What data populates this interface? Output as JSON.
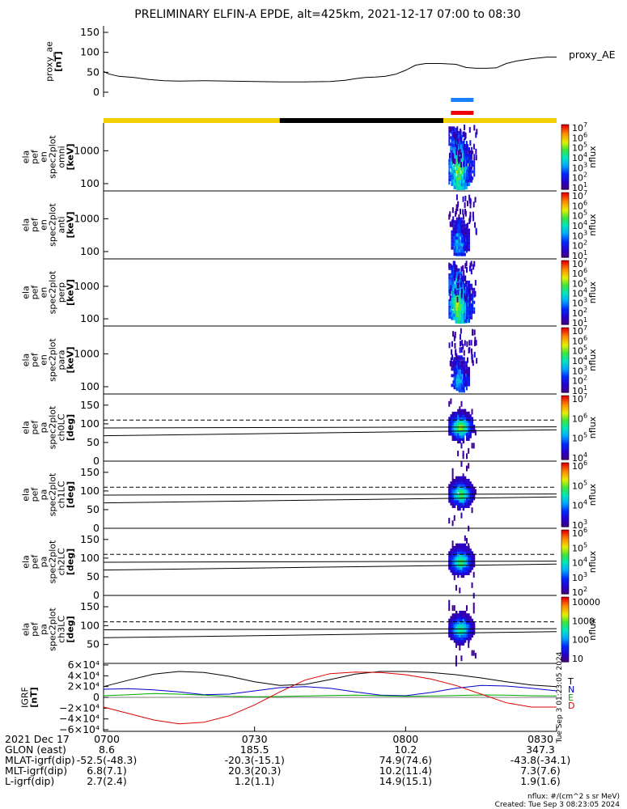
{
  "chart_data": [
    {
      "type": "line",
      "title": "PRELIMINARY ELFIN-A EPDE, alt=425km, 2021-12-17 07:00 to 08:30",
      "ylabel": [
        "proxy_ae",
        "[nT]"
      ],
      "ylim": [
        0,
        160
      ],
      "yticks": [
        0,
        50,
        100,
        150
      ],
      "legend": "proxy_AE",
      "series": [
        {
          "name": "proxy_AE",
          "color": "#000000",
          "x": [
            0,
            1,
            3,
            6,
            9,
            12,
            15,
            20,
            25,
            30,
            35,
            40,
            45,
            48,
            50,
            52,
            54,
            56,
            58,
            60,
            62,
            64,
            65,
            67,
            70,
            72,
            74,
            76,
            78,
            80,
            82,
            85,
            88,
            90
          ],
          "y": [
            52,
            46,
            40,
            37,
            32,
            29,
            28,
            29,
            28,
            27,
            26,
            26,
            27,
            30,
            34,
            37,
            38,
            40,
            45,
            55,
            68,
            72,
            72,
            72,
            70,
            62,
            60,
            60,
            61,
            72,
            78,
            84,
            88,
            88
          ]
        }
      ]
    },
    {
      "type": "heatmap",
      "ylabel": [
        "ela",
        "pef",
        "en",
        "spec2plot",
        "omni",
        "[keV]"
      ],
      "ylog": true,
      "ylim": [
        60,
        7000
      ],
      "yticks": [
        100,
        1000
      ],
      "ytick_labels": [
        "100",
        "1000"
      ],
      "colorbar": {
        "label": "nflux",
        "log": true,
        "min_exp": 1,
        "max_exp": 7
      },
      "intensity": [
        {
          "t": 69.0,
          "lo": 110,
          "hi": 5500,
          "c": 0.32
        },
        {
          "t": 69.5,
          "lo": 95,
          "hi": 5000,
          "c": 0.45
        },
        {
          "t": 70.0,
          "lo": 80,
          "hi": 4000,
          "c": 0.58
        },
        {
          "t": 70.5,
          "lo": 75,
          "hi": 3000,
          "c": 0.7
        },
        {
          "t": 71.0,
          "lo": 75,
          "hi": 2400,
          "c": 0.62
        },
        {
          "t": 71.5,
          "lo": 80,
          "hi": 2000,
          "c": 0.52
        },
        {
          "t": 72.0,
          "lo": 90,
          "hi": 1600,
          "c": 0.4
        },
        {
          "t": 72.5,
          "lo": 110,
          "hi": 1300,
          "c": 0.3
        },
        {
          "t": 73.0,
          "lo": 150,
          "hi": 1000,
          "c": 0.22
        }
      ]
    },
    {
      "type": "heatmap",
      "ylabel": [
        "ela",
        "pef",
        "en",
        "spec2plot",
        "anti",
        "[keV]"
      ],
      "ylog": true,
      "ylim": [
        60,
        7000
      ],
      "yticks": [
        100,
        1000
      ],
      "ytick_labels": [
        "100",
        "1000"
      ],
      "colorbar": {
        "label": "nflux",
        "log": true,
        "min_exp": 1,
        "max_exp": 7
      },
      "intensity": [
        {
          "t": 69.5,
          "lo": 120,
          "hi": 700,
          "c": 0.18
        },
        {
          "t": 70.0,
          "lo": 90,
          "hi": 900,
          "c": 0.32
        },
        {
          "t": 70.5,
          "lo": 80,
          "hi": 1100,
          "c": 0.42
        },
        {
          "t": 71.0,
          "lo": 80,
          "hi": 900,
          "c": 0.4
        },
        {
          "t": 71.5,
          "lo": 90,
          "hi": 700,
          "c": 0.3
        },
        {
          "t": 72.0,
          "lo": 110,
          "hi": 500,
          "c": 0.2
        }
      ]
    },
    {
      "type": "heatmap",
      "ylabel": [
        "ela",
        "pef",
        "en",
        "spec2plot",
        "perp",
        "[keV]"
      ],
      "ylog": true,
      "ylim": [
        60,
        7000
      ],
      "yticks": [
        100,
        1000
      ],
      "ytick_labels": [
        "100",
        "1000"
      ],
      "colorbar": {
        "label": "nflux",
        "log": true,
        "min_exp": 1,
        "max_exp": 7
      },
      "intensity": [
        {
          "t": 69.0,
          "lo": 110,
          "hi": 5000,
          "c": 0.35
        },
        {
          "t": 69.5,
          "lo": 95,
          "hi": 4500,
          "c": 0.48
        },
        {
          "t": 70.0,
          "lo": 80,
          "hi": 3600,
          "c": 0.6
        },
        {
          "t": 70.5,
          "lo": 75,
          "hi": 2800,
          "c": 0.72
        },
        {
          "t": 71.0,
          "lo": 75,
          "hi": 2200,
          "c": 0.64
        },
        {
          "t": 71.5,
          "lo": 80,
          "hi": 1800,
          "c": 0.54
        },
        {
          "t": 72.0,
          "lo": 90,
          "hi": 1500,
          "c": 0.42
        },
        {
          "t": 72.5,
          "lo": 110,
          "hi": 1200,
          "c": 0.3
        },
        {
          "t": 73.0,
          "lo": 150,
          "hi": 900,
          "c": 0.22
        }
      ]
    },
    {
      "type": "heatmap",
      "ylabel": [
        "ela",
        "pef",
        "en",
        "spec2plot",
        "para",
        "[keV]"
      ],
      "ylog": true,
      "ylim": [
        60,
        7000
      ],
      "yticks": [
        100,
        1000
      ],
      "ytick_labels": [
        "100",
        "1000"
      ],
      "colorbar": {
        "label": "nflux",
        "log": true,
        "min_exp": 1,
        "max_exp": 7
      },
      "intensity": [
        {
          "t": 69.5,
          "lo": 110,
          "hi": 600,
          "c": 0.16
        },
        {
          "t": 70.0,
          "lo": 85,
          "hi": 800,
          "c": 0.3
        },
        {
          "t": 70.5,
          "lo": 75,
          "hi": 900,
          "c": 0.4
        },
        {
          "t": 71.0,
          "lo": 75,
          "hi": 800,
          "c": 0.38
        },
        {
          "t": 71.5,
          "lo": 85,
          "hi": 600,
          "c": 0.28
        },
        {
          "t": 72.0,
          "lo": 110,
          "hi": 400,
          "c": 0.18
        }
      ]
    },
    {
      "type": "heatmap",
      "ylabel": [
        "ela",
        "pef",
        "pa",
        "spec2plot",
        "ch0LC",
        "[deg]"
      ],
      "ylim": [
        0,
        180
      ],
      "yticks": [
        0,
        50,
        100,
        150
      ],
      "colorbar": {
        "label": "nflux",
        "log": true,
        "min_exp": 4,
        "max_exp": 7
      },
      "center_deg": 95,
      "peak": 0.68,
      "lines": {
        "dashed": 110,
        "upper": [
          89,
          92
        ],
        "lower": [
          68,
          84
        ]
      }
    },
    {
      "type": "heatmap",
      "ylabel": [
        "ela",
        "pef",
        "pa",
        "spec2plot",
        "ch1LC",
        "[deg]"
      ],
      "ylim": [
        0,
        180
      ],
      "yticks": [
        0,
        50,
        100,
        150
      ],
      "colorbar": {
        "label": "nflux",
        "log": true,
        "min_exp": 3,
        "max_exp": 6
      },
      "center_deg": 95,
      "peak": 0.62,
      "lines": {
        "dashed": 110,
        "upper": [
          89,
          92
        ],
        "lower": [
          68,
          84
        ]
      }
    },
    {
      "type": "heatmap",
      "ylabel": [
        "ela",
        "pef",
        "pa",
        "spec2plot",
        "ch2LC",
        "[deg]"
      ],
      "ylim": [
        0,
        180
      ],
      "yticks": [
        0,
        50,
        100,
        150
      ],
      "colorbar": {
        "label": "nflux",
        "log": true,
        "min_exp": 2,
        "max_exp": 6
      },
      "center_deg": 95,
      "peak": 0.6,
      "lines": {
        "dashed": 110,
        "upper": [
          89,
          92
        ],
        "lower": [
          68,
          84
        ]
      }
    },
    {
      "type": "heatmap",
      "ylabel": [
        "ela",
        "pef",
        "pa",
        "spec2plot",
        "ch3LC",
        "[deg]"
      ],
      "ylim": [
        0,
        180
      ],
      "yticks": [
        50,
        100,
        150
      ],
      "colorbar": {
        "label": "nflux",
        "log": true,
        "ticks": [
          "10",
          "100",
          "1000",
          "10000"
        ]
      },
      "center_deg": 95,
      "peak": 0.55,
      "lines": {
        "dashed": 110,
        "upper": [
          89,
          92
        ],
        "lower": [
          68,
          84
        ]
      }
    },
    {
      "type": "line",
      "ylabel": [
        "IGRF",
        "[nT]"
      ],
      "ylim": [
        -65000,
        65000
      ],
      "ytick_labels": [
        "6×10⁴",
        "4×10⁴",
        "2×10⁴",
        "0",
        "−2×10⁴",
        "−4×10⁴",
        "−6×10⁴"
      ],
      "yticks": [
        60000,
        40000,
        20000,
        0,
        -20000,
        -40000,
        -60000
      ],
      "series": [
        {
          "name": "T",
          "color": "#000000",
          "x": [
            0,
            5,
            10,
            15,
            20,
            25,
            30,
            35,
            40,
            45,
            50,
            55,
            60,
            65,
            70,
            75,
            80,
            85,
            90
          ],
          "y": [
            20000,
            32000,
            43000,
            48000,
            46000,
            39000,
            29000,
            22000,
            24000,
            33000,
            43000,
            48000,
            48000,
            46000,
            42000,
            36000,
            29000,
            23000,
            20000
          ]
        },
        {
          "name": "N",
          "color": "#0000cc",
          "x": [
            0,
            5,
            10,
            15,
            20,
            25,
            30,
            35,
            40,
            45,
            50,
            55,
            60,
            65,
            70,
            75,
            80,
            85,
            90
          ],
          "y": [
            15000,
            16000,
            14000,
            10000,
            5000,
            6000,
            12000,
            18000,
            20000,
            17000,
            10000,
            4000,
            3000,
            9000,
            17000,
            22000,
            21000,
            17000,
            12000
          ]
        },
        {
          "name": "E",
          "color": "#00aa00",
          "x": [
            0,
            5,
            10,
            15,
            20,
            25,
            30,
            35,
            40,
            45,
            50,
            55,
            60,
            65,
            70,
            75,
            80,
            85,
            90
          ],
          "y": [
            3000,
            5000,
            7000,
            6000,
            4000,
            2000,
            1000,
            1500,
            2500,
            3500,
            4000,
            3000,
            2000,
            2500,
            3500,
            4500,
            4000,
            3000,
            2500
          ]
        },
        {
          "name": "D",
          "color": "#dd0000",
          "x": [
            0,
            5,
            10,
            15,
            20,
            25,
            30,
            35,
            40,
            45,
            50,
            55,
            60,
            65,
            70,
            75,
            80,
            85,
            90
          ],
          "y": [
            -18000,
            -30000,
            -42000,
            -49000,
            -46000,
            -34000,
            -14000,
            10000,
            32000,
            44000,
            47000,
            46000,
            42000,
            34000,
            22000,
            6000,
            -10000,
            -18000,
            -18000
          ]
        }
      ]
    }
  ],
  "ephemeris_bars": {
    "blue": [
      69,
      73.5
    ],
    "red": [
      69,
      73.5
    ],
    "black": [
      35,
      67.5
    ],
    "blue_color": "#1a80ff",
    "red_color": "#ee0000",
    "yellow_color": "#f5d000"
  },
  "igrf_legend": [
    {
      "label": "T",
      "color": "#000000"
    },
    {
      "label": "N",
      "color": "#0000cc"
    },
    {
      "label": "E",
      "color": "#00aa00"
    },
    {
      "label": "D",
      "color": "#dd0000"
    }
  ],
  "footer": {
    "rows": [
      {
        "label": "2021 Dec 17",
        "values": [
          "0700",
          "0730",
          "0800",
          "0830"
        ]
      },
      {
        "label": "GLON (east)",
        "values": [
          "8.6",
          "185.5",
          "10.2",
          "347.3"
        ]
      },
      {
        "label": "MLAT-igrf(dip)",
        "values": [
          "-52.5(-48.3)",
          "-20.3(-15.1)",
          "74.9(74.6)",
          "-43.8(-34.1)"
        ]
      },
      {
        "label": "MLT-igrf(dip)",
        "values": [
          "6.8(7.1)",
          "20.3(20.3)",
          "10.2(11.4)",
          "7.3(7.6)"
        ]
      },
      {
        "label": "L-igrf(dip)",
        "values": [
          "2.7(2.4)",
          "1.2(1.1)",
          "14.9(15.1)",
          "1.9(1.6)"
        ]
      }
    ],
    "units_note": "nflux: #/(cm^2 s sr MeV)",
    "created": "Created: Tue Sep  3 08:23:05 2024",
    "vertical_stamp": "Tue Sep  3 01:23:05 2024"
  }
}
